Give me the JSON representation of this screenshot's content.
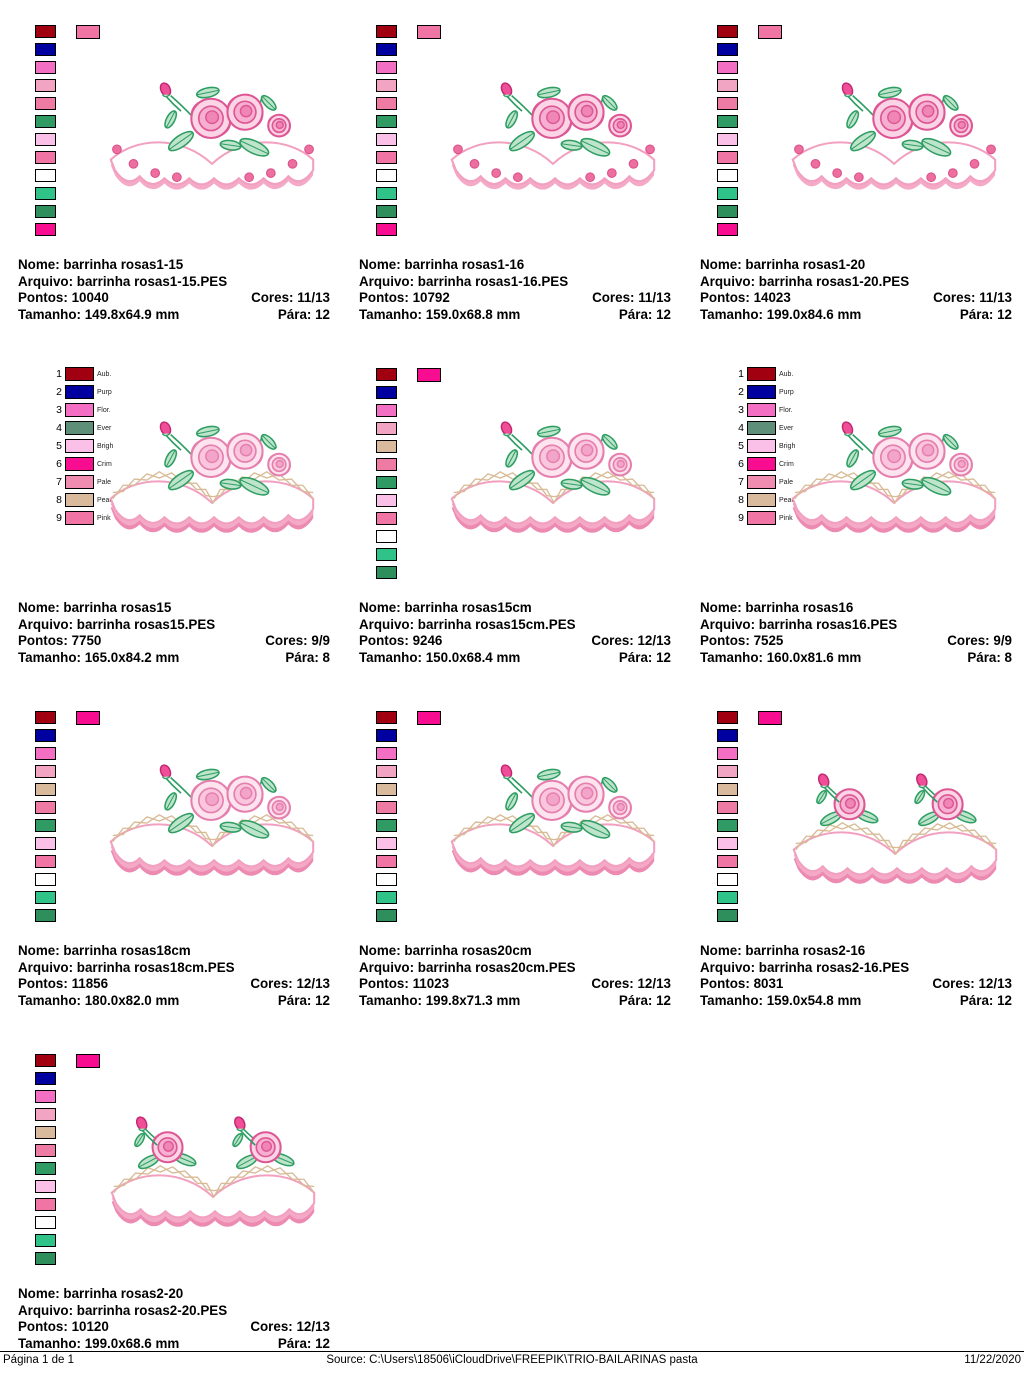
{
  "labels": {
    "nome": "Nome:",
    "arquivo": "Arquivo:",
    "pontos": "Pontos:",
    "cores": "Cores:",
    "tamanho": "Tamanho:",
    "para": "Pára:"
  },
  "palettes": {
    "A": {
      "numbered": false,
      "swatches": [
        "#A00010",
        "#0000A0",
        "#F26FC3",
        "#F2A4C3",
        "#EE7BA4",
        "#2F9A64",
        "#FBC0E8",
        "#F075A5",
        "#FFFFFF",
        "#2FC389",
        "#2E8F5C",
        "#F80D90"
      ],
      "extra": "#F075A5"
    },
    "B": {
      "numbered": true,
      "numbers": [
        "1",
        "2",
        "3",
        "4",
        "5",
        "6",
        "7",
        "8",
        "9"
      ],
      "labels": [
        "Aub.",
        "Purp",
        "Flor.",
        "Ever",
        "Brigh",
        "Crim",
        "Pale",
        "Peac",
        "Pink"
      ],
      "swatches": [
        "#A00010",
        "#0000A0",
        "#F26FC3",
        "#5E8F78",
        "#FBC0E8",
        "#F80D90",
        "#F08CB0",
        "#D9BA9C",
        "#F075A5"
      ]
    },
    "C": {
      "numbered": false,
      "swatches": [
        "#A00010",
        "#0000A0",
        "#F26FC3",
        "#F2A4C3",
        "#D9BA9C",
        "#EE7BA4",
        "#2F9A64",
        "#FBC0E8",
        "#F075A5",
        "#FFFFFF",
        "#2FC389",
        "#2E8F5C"
      ],
      "extra": "#F80D90"
    }
  },
  "designs": [
    {
      "nome": "barrinha rosas1-15",
      "arquivo": "barrinha rosas1-15.PES",
      "pontos": "10040",
      "cores": "11/13",
      "tamanho": "149.8x64.9 mm",
      "para": "12",
      "palette_type": "A",
      "image_variant": "dots"
    },
    {
      "nome": "barrinha rosas1-16",
      "arquivo": "barrinha rosas1-16.PES",
      "pontos": "10792",
      "cores": "11/13",
      "tamanho": "159.0x68.8 mm",
      "para": "12",
      "palette_type": "A",
      "image_variant": "dots"
    },
    {
      "nome": "barrinha rosas1-20",
      "arquivo": "barrinha rosas1-20.PES",
      "pontos": "14023",
      "cores": "11/13",
      "tamanho": "199.0x84.6 mm",
      "para": "12",
      "palette_type": "A",
      "image_variant": "dots"
    },
    {
      "nome": "barrinha rosas15",
      "arquivo": "barrinha rosas15.PES",
      "pontos": "7750",
      "cores": "9/9",
      "tamanho": "165.0x84.2 mm",
      "para": "8",
      "palette_type": "B",
      "image_variant": "chain"
    },
    {
      "nome": "barrinha rosas15cm",
      "arquivo": "barrinha rosas15cm.PES",
      "pontos": "9246",
      "cores": "12/13",
      "tamanho": "150.0x68.4 mm",
      "para": "12",
      "palette_type": "C",
      "image_variant": "chain"
    },
    {
      "nome": "barrinha rosas16",
      "arquivo": "barrinha rosas16.PES",
      "pontos": "7525",
      "cores": "9/9",
      "tamanho": "160.0x81.6 mm",
      "para": "8",
      "palette_type": "B",
      "image_variant": "chain"
    },
    {
      "nome": "barrinha rosas18cm",
      "arquivo": "barrinha rosas18cm.PES",
      "pontos": "11856",
      "cores": "12/13",
      "tamanho": "180.0x82.0 mm",
      "para": "12",
      "palette_type": "C",
      "image_variant": "chain"
    },
    {
      "nome": "barrinha rosas20cm",
      "arquivo": "barrinha rosas20cm.PES",
      "pontos": "11023",
      "cores": "12/13",
      "tamanho": "199.8x71.3 mm",
      "para": "12",
      "palette_type": "C",
      "image_variant": "chain"
    },
    {
      "nome": "barrinha rosas2-16",
      "arquivo": "barrinha rosas2-16.PES",
      "pontos": "8031",
      "cores": "12/13",
      "tamanho": "159.0x54.8 mm",
      "para": "12",
      "palette_type": "C",
      "image_variant": "double"
    },
    {
      "nome": "barrinha rosas2-20",
      "arquivo": "barrinha rosas2-20.PES",
      "pontos": "10120",
      "cores": "12/13",
      "tamanho": "199.0x68.6 mm",
      "para": "12",
      "palette_type": "C",
      "image_variant": "double"
    }
  ],
  "artwork": {
    "rose_fill": "#FBD4E5",
    "rose_mid": "#F6AFD0",
    "rose_core": "#EF86B6",
    "rose_stroke": "#DD5795",
    "leaf_fill": "#BFE4CC",
    "leaf_stroke": "#2E9E63",
    "band_stroke": "#F2A0C0",
    "band_edge": "#F4AAC6",
    "band_edge2": "#EC8AB2",
    "dot": "#EC6FA0",
    "dot_stroke": "#DB4E88",
    "chain": "#D8BB96",
    "bud": "#EE4F96",
    "bud_stroke": "#C22672"
  },
  "artwork_pale": {
    "rose_fill": "#FDE4EF",
    "rose_mid": "#F9C6DD",
    "rose_core": "#F3A4C9",
    "rose_stroke": "#E57FAE"
  },
  "footer": {
    "page": "Página 1 de 1",
    "source": "Source: C:\\Users\\18506\\iCloudDrive\\FREEPIK\\TRIO-BAILARINAS pasta",
    "date": "11/22/2020"
  }
}
